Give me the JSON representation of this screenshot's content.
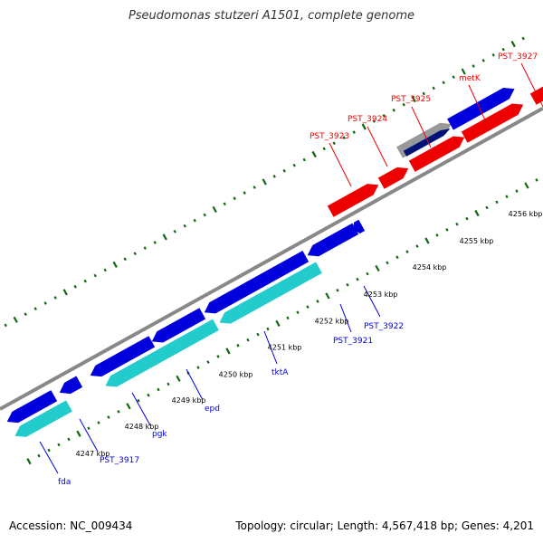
{
  "title": "Pseudomonas stutzeri A1501, complete genome",
  "footer": {
    "accession": "Accession: NC_009434",
    "meta": "Topology: circular; Length: 4,567,418 bp; Genes: 4,201"
  },
  "colors": {
    "forward": "#ee0000",
    "reverse": "#0000dd",
    "cds_rna": "#22cccc",
    "backbone": "#888888",
    "ticks": "#116611",
    "selected": "#001177"
  },
  "kbp_labels": [
    "4247 kbp",
    "4248 kbp",
    "4249 kbp",
    "4250 kbp",
    "4251 kbp",
    "4252 kbp",
    "4253 kbp",
    "4254 kbp",
    "4255 kbp",
    "4256 kbp"
  ],
  "forward_labels": [
    "PST_3923",
    "PST_3924",
    "PST_3925",
    "metK",
    "PST_3927"
  ],
  "reverse_labels": [
    "fda",
    "PST_3917",
    "pgk",
    "epd",
    "tktA",
    "PST_3921",
    "PST_3922"
  ]
}
